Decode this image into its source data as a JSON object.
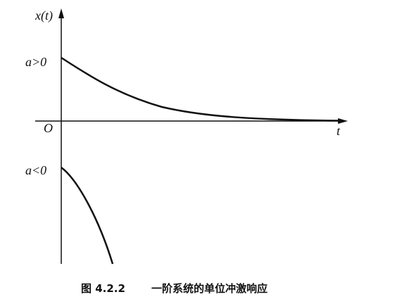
{
  "axis": {
    "y_label": "x(t)",
    "x_label": "t",
    "origin": "O"
  },
  "curves": {
    "positive": {
      "label": "a>0"
    },
    "negative": {
      "label": "a<0"
    }
  },
  "caption": {
    "number": "图 4.2.2",
    "text": "一阶系统的单位冲激响应"
  }
}
